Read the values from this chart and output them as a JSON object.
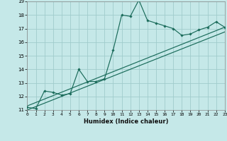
{
  "xlabel": "Humidex (Indice chaleur)",
  "bg_color": "#c5e8e8",
  "grid_color": "#a0cccc",
  "line_color": "#1a6b5a",
  "xlim": [
    0,
    23
  ],
  "ylim": [
    11,
    19
  ],
  "xticks": [
    0,
    1,
    2,
    3,
    4,
    5,
    6,
    7,
    8,
    9,
    10,
    11,
    12,
    13,
    14,
    15,
    16,
    17,
    18,
    19,
    20,
    21,
    22,
    23
  ],
  "yticks": [
    11,
    12,
    13,
    14,
    15,
    16,
    17,
    18,
    19
  ],
  "line1_x": [
    0,
    1,
    2,
    3,
    4,
    5,
    6,
    7,
    8,
    9,
    10,
    11,
    12,
    13,
    14,
    15,
    16,
    17,
    18,
    19,
    20,
    21,
    22,
    23
  ],
  "line1_y": [
    11.2,
    11.1,
    12.4,
    12.3,
    12.1,
    12.2,
    14.0,
    13.1,
    13.1,
    13.3,
    15.4,
    18.0,
    17.9,
    19.1,
    17.6,
    17.4,
    17.2,
    17.0,
    16.5,
    16.6,
    16.9,
    17.1,
    17.5,
    17.1
  ],
  "trend1_x0": 0,
  "trend1_y0": 11.3,
  "trend1_x1": 23,
  "trend1_y1": 17.1,
  "trend2_x0": 0,
  "trend2_y0": 11.0,
  "trend2_x1": 23,
  "trend2_y1": 16.75
}
